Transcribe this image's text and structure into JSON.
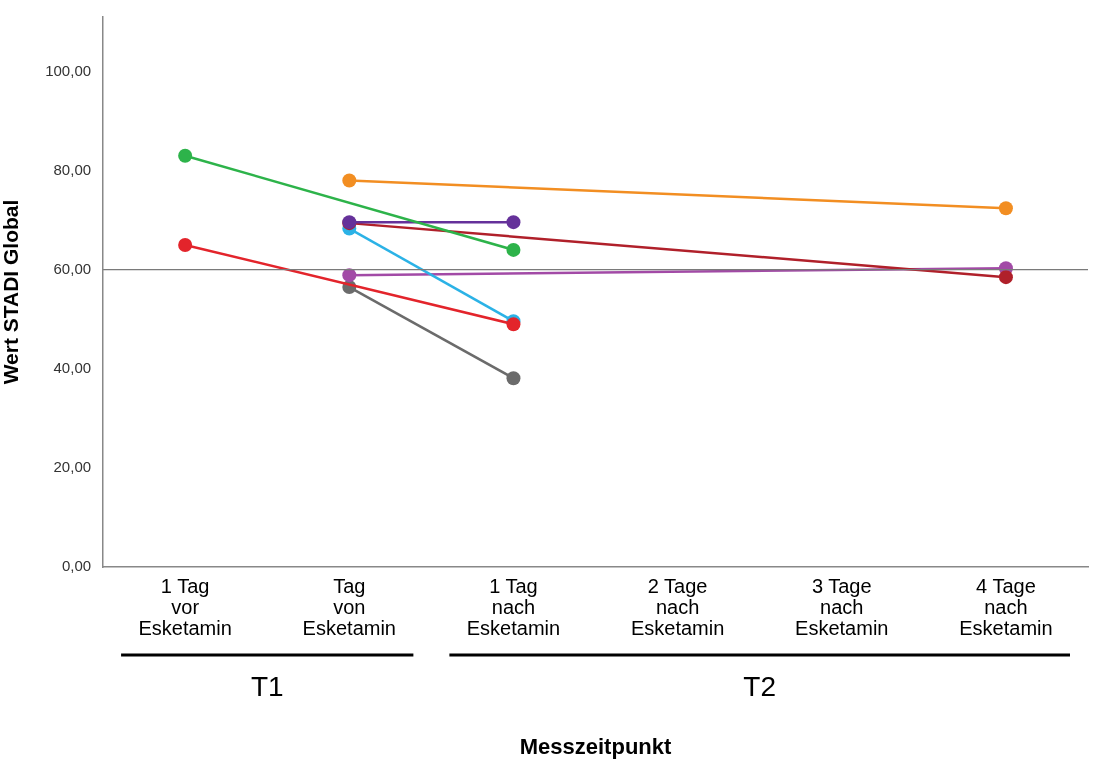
{
  "chart_data": {
    "type": "line",
    "xlabel": "Messzeitpunkt",
    "ylabel": "Wert STADI Global",
    "categories": [
      "1 Tag\nvor\nEsketamin",
      "Tag\nvon\nEsketamin",
      "1 Tag\nnach\nEsketamin",
      "2 Tage\nnach\nEsketamin",
      "3 Tage\nnach\nEsketamin",
      "4 Tage\nnach\nEsketamin"
    ],
    "series": [
      {
        "color": "#2db34a",
        "values": [
          83,
          null,
          64,
          null,
          null,
          null
        ]
      },
      {
        "color": "#e3242b",
        "values": [
          65,
          null,
          49,
          null,
          null,
          null
        ]
      },
      {
        "color": "#f28e22",
        "values": [
          null,
          78,
          null,
          null,
          null,
          72.4
        ]
      },
      {
        "color": "#65319a",
        "values": [
          null,
          69.6,
          69.6,
          null,
          null,
          null
        ]
      },
      {
        "color": "#b0202a",
        "values": [
          null,
          69.4,
          null,
          null,
          null,
          58.5
        ]
      },
      {
        "color": "#2bb2e6",
        "values": [
          null,
          68.3,
          49.6,
          null,
          null,
          null
        ]
      },
      {
        "color": "#a24aa6",
        "values": [
          null,
          58.9,
          null,
          null,
          null,
          60.3
        ]
      },
      {
        "color": "#6b6b6b",
        "values": [
          null,
          56.5,
          38.1,
          null,
          null,
          null
        ]
      }
    ],
    "ylim": [
      0,
      111
    ],
    "yticks": [
      {
        "value": 0,
        "label": "0,00"
      },
      {
        "value": 20,
        "label": "20,00"
      },
      {
        "value": 40,
        "label": "40,00"
      },
      {
        "value": 60,
        "label": "60,00"
      },
      {
        "value": 80,
        "label": "80,00"
      },
      {
        "value": 100,
        "label": "100,00"
      }
    ],
    "ref_lines": [
      {
        "axis": "y",
        "value": 60,
        "color": "#7a7a7a"
      }
    ],
    "annotations": [
      "T1",
      "T2"
    ],
    "grid": false,
    "legend": false,
    "marker": "circle",
    "line_style": "solid"
  }
}
